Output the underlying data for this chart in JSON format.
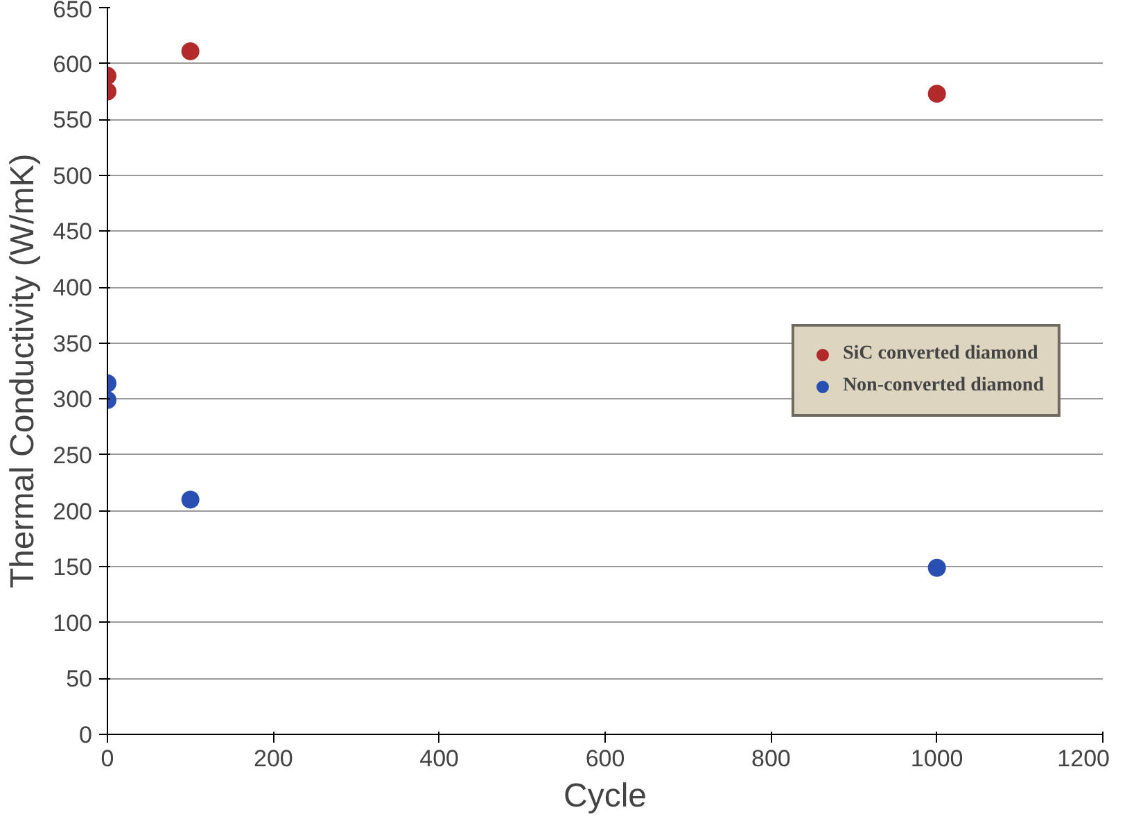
{
  "chart_data": {
    "type": "scatter",
    "xlabel": "Cycle",
    "ylabel": "Thermal Conductivity (W/mK)",
    "xlim": [
      0,
      1200
    ],
    "xticks": [
      0,
      200,
      400,
      600,
      800,
      1000,
      1200
    ],
    "ylim": [
      0,
      650
    ],
    "yticks": [
      0,
      50,
      100,
      150,
      200,
      250,
      300,
      350,
      400,
      450,
      500,
      550,
      600,
      650
    ],
    "grid": "y",
    "legend": "right",
    "marker": "circle",
    "series": [
      {
        "name": "SiC converted diamond",
        "color": "#b22a2a",
        "x": [
          0,
          0,
          100,
          1000
        ],
        "values": [
          589,
          575,
          611,
          573
        ]
      },
      {
        "name": "Non-converted diamond",
        "color": "#2a4fb2",
        "x": [
          0,
          0,
          100,
          1000
        ],
        "values": [
          314,
          299,
          210,
          149
        ]
      }
    ]
  }
}
